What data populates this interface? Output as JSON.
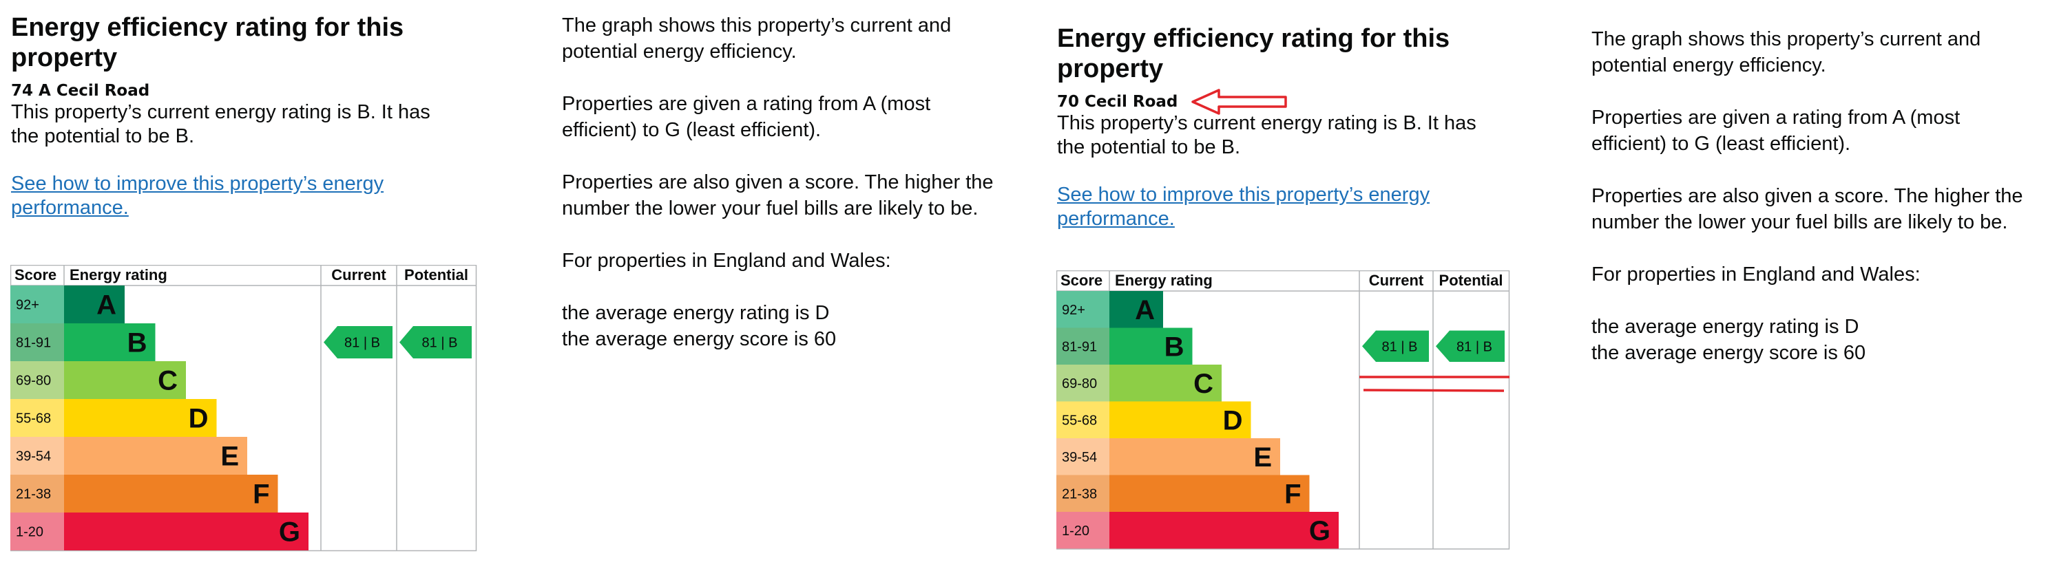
{
  "colors": {
    "A": "#008054",
    "B": "#19b459",
    "C": "#8dce46",
    "D": "#ffd500",
    "E": "#fcaa65",
    "F": "#ef8023",
    "G": "#e9153b",
    "score_A": "#5cc39b",
    "score_B": "#65ba84",
    "score_C": "#b2d78a",
    "score_D": "#ffe366",
    "score_E": "#fdc89c",
    "score_F": "#f2a96a",
    "score_G": "#f07f91",
    "link": "#1d70b8",
    "annotation": "#e3262b"
  },
  "left": {
    "heading": "Energy efficiency rating for this property",
    "heading_line1": "Energy efficiency rating for this",
    "heading_line2": "property",
    "address": "74 A Cecil Road",
    "summary_line1": "This property’s current energy rating is B. It has",
    "summary_line2": "the potential to be B.",
    "link_line1": "See how to improve this property’s energy",
    "link_line2": "performance."
  },
  "right": {
    "heading_line1": "Energy efficiency rating for this",
    "heading_line2": "property",
    "address": "70 Cecil Road",
    "summary_line1": "This property’s current energy rating is B. It has",
    "summary_line2": "the potential to be B.",
    "link_line1": "See how to improve this property’s energy",
    "link_line2": "performance."
  },
  "info": {
    "p1_line1": "The graph shows this property’s current and",
    "p1_line2": "potential energy efficiency.",
    "p2_line1": "Properties are given a rating from A (most",
    "p2_line2": "efficient) to G (least efficient).",
    "p3_line1": "Properties are also given a score. The higher the",
    "p3_line2": "number the lower your fuel bills are likely to be.",
    "p4": "For properties in England and Wales:",
    "p5_line1": "the average energy rating is D",
    "p5_line2": "the average energy score is 60"
  },
  "chart_data": [
    {
      "type": "table",
      "headers": [
        "Score",
        "Energy rating",
        "Current",
        "Potential"
      ],
      "bands": [
        {
          "score": "92+",
          "letter": "A"
        },
        {
          "score": "81-91",
          "letter": "B"
        },
        {
          "score": "69-80",
          "letter": "C"
        },
        {
          "score": "55-68",
          "letter": "D"
        },
        {
          "score": "39-54",
          "letter": "E"
        },
        {
          "score": "21-38",
          "letter": "F"
        },
        {
          "score": "1-20",
          "letter": "G"
        }
      ],
      "current": {
        "label": "81 | B",
        "band": "B"
      },
      "potential": {
        "label": "81 | B",
        "band": "B"
      }
    },
    {
      "type": "table",
      "headers": [
        "Score",
        "Energy rating",
        "Current",
        "Potential"
      ],
      "bands": [
        {
          "score": "92+",
          "letter": "A"
        },
        {
          "score": "81-91",
          "letter": "B"
        },
        {
          "score": "69-80",
          "letter": "C"
        },
        {
          "score": "55-68",
          "letter": "D"
        },
        {
          "score": "39-54",
          "letter": "E"
        },
        {
          "score": "21-38",
          "letter": "F"
        },
        {
          "score": "1-20",
          "letter": "G"
        }
      ],
      "current": {
        "label": "81 | B",
        "band": "B"
      },
      "potential": {
        "label": "81 | B",
        "band": "B"
      }
    }
  ]
}
